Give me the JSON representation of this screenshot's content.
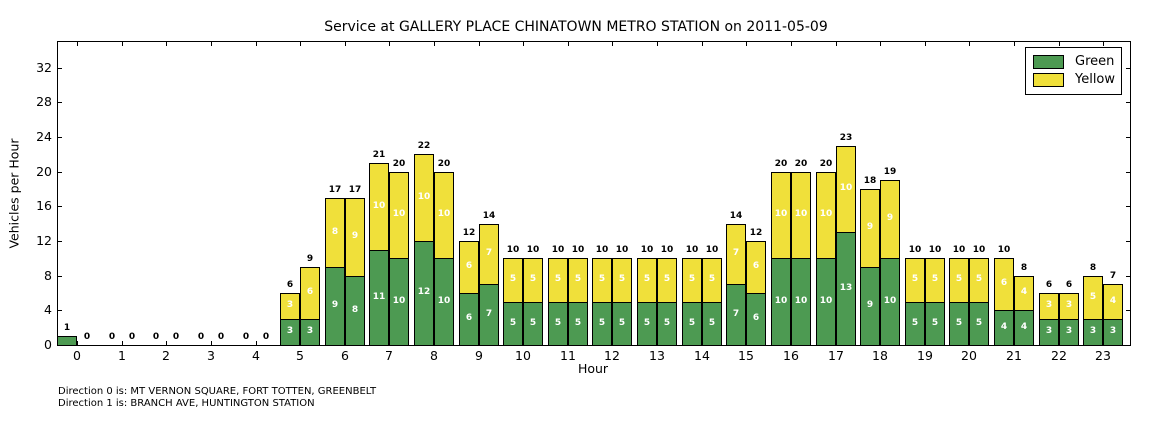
{
  "footer": {
    "line1": "Direction 0 is: MT VERNON SQUARE, FORT TOTTEN, GREENBELT",
    "line2": "Direction 1 is: BRANCH AVE, HUNTINGTON STATION"
  },
  "chart_data": {
    "type": "bar",
    "stacked": true,
    "title": "Service at GALLERY PLACE CHINATOWN METRO STATION on 2011-05-09",
    "xlabel": "Hour",
    "ylabel": "Vehicles per Hour",
    "hours": [
      0,
      1,
      2,
      3,
      4,
      5,
      6,
      7,
      8,
      9,
      10,
      11,
      12,
      13,
      14,
      15,
      16,
      17,
      18,
      19,
      20,
      21,
      22,
      23
    ],
    "bars_per_hour": [
      "direction 0",
      "direction 1"
    ],
    "series": [
      {
        "name": "Green",
        "color": "#4d9a52",
        "dir0": [
          1,
          0,
          0,
          0,
          0,
          3,
          9,
          11,
          12,
          6,
          5,
          5,
          5,
          5,
          5,
          7,
          10,
          10,
          9,
          5,
          5,
          4,
          3,
          3
        ],
        "dir1": [
          0,
          0,
          0,
          0,
          0,
          3,
          8,
          10,
          10,
          7,
          5,
          5,
          5,
          5,
          5,
          6,
          10,
          13,
          10,
          5,
          5,
          4,
          3,
          3
        ]
      },
      {
        "name": "Yellow",
        "color": "#f0e03a",
        "dir0": [
          0,
          0,
          0,
          0,
          0,
          3,
          8,
          10,
          10,
          6,
          5,
          5,
          5,
          5,
          5,
          7,
          10,
          10,
          9,
          5,
          5,
          6,
          3,
          5
        ],
        "dir1": [
          0,
          0,
          0,
          0,
          0,
          6,
          9,
          10,
          10,
          7,
          5,
          5,
          5,
          5,
          5,
          6,
          10,
          10,
          9,
          5,
          5,
          4,
          3,
          4
        ]
      }
    ],
    "totals": {
      "dir0": [
        1,
        0,
        0,
        0,
        0,
        6,
        17,
        21,
        22,
        12,
        10,
        10,
        10,
        10,
        10,
        14,
        20,
        20,
        18,
        10,
        10,
        10,
        6,
        8
      ],
      "dir1": [
        0,
        0,
        0,
        0,
        0,
        9,
        17,
        20,
        20,
        14,
        10,
        10,
        10,
        10,
        10,
        12,
        20,
        23,
        19,
        10,
        10,
        8,
        6,
        7
      ]
    },
    "yticks": [
      0,
      4,
      8,
      12,
      16,
      20,
      24,
      28,
      32
    ],
    "ylim": [
      0,
      35.1
    ],
    "xlim": [
      -0.45,
      23.6
    ],
    "grid": false,
    "edge_color": "#000000",
    "legend": {
      "position": "upper right",
      "entries": [
        {
          "label": "Green",
          "color": "#4d9a52"
        },
        {
          "label": "Yellow",
          "color": "#f0e03a"
        }
      ]
    }
  }
}
